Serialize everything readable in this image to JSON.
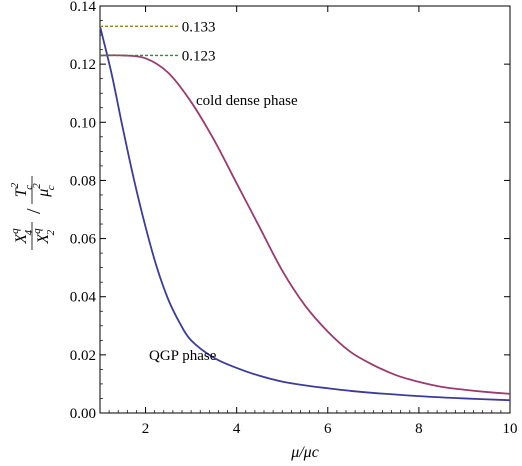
{
  "chart_data": {
    "type": "line",
    "xlabel": "μ/μc",
    "ylabel": "X₄^q/X₂^q / T_c²/μ_c²",
    "xlim": [
      1,
      10
    ],
    "ylim": [
      0,
      0.14
    ],
    "x_ticks": [
      2,
      4,
      6,
      8,
      10
    ],
    "x_tick_labels": [
      "2",
      "4",
      "6",
      "8",
      "10"
    ],
    "y_ticks": [
      0.0,
      0.02,
      0.04,
      0.06,
      0.08,
      0.1,
      0.12,
      0.14
    ],
    "y_tick_labels": [
      "0.00",
      "0.02",
      "0.04",
      "0.06",
      "0.08",
      "0.10",
      "0.12",
      "0.14"
    ],
    "grid": false,
    "legend": "none",
    "series": [
      {
        "label": "cold dense phase",
        "color": "#9b3a6e",
        "x": [
          1.0,
          1.5,
          2.0,
          2.5,
          3.0,
          3.5,
          4.0,
          4.5,
          5.0,
          5.5,
          6.0,
          6.5,
          7.0,
          7.5,
          8.0,
          8.5,
          9.0,
          9.5,
          10.0
        ],
        "y": [
          0.123,
          0.123,
          0.122,
          0.117,
          0.107,
          0.094,
          0.079,
          0.064,
          0.049,
          0.037,
          0.028,
          0.021,
          0.0165,
          0.013,
          0.0107,
          0.009,
          0.008,
          0.0072,
          0.0066
        ]
      },
      {
        "label": "QGP phase",
        "color": "#3b3b9e",
        "x": [
          1.0,
          1.25,
          1.5,
          1.75,
          2.0,
          2.25,
          2.5,
          2.75,
          3.0,
          3.5,
          4.0,
          4.5,
          5.0,
          5.5,
          6.0,
          6.5,
          7.0,
          8.0,
          9.0,
          10.0
        ],
        "y": [
          0.133,
          0.117,
          0.098,
          0.08,
          0.064,
          0.05,
          0.039,
          0.031,
          0.025,
          0.019,
          0.0155,
          0.0128,
          0.0108,
          0.0095,
          0.0085,
          0.0076,
          0.0069,
          0.0058,
          0.005,
          0.0044
        ]
      }
    ],
    "reference_lines": [
      {
        "y": 0.133,
        "x_range": [
          1,
          2.75
        ],
        "color": "#a07d20",
        "label": "0.133"
      },
      {
        "y": 0.123,
        "x_range": [
          1,
          2.75
        ],
        "color": "#2e8b3a",
        "label": "0.123"
      }
    ]
  }
}
